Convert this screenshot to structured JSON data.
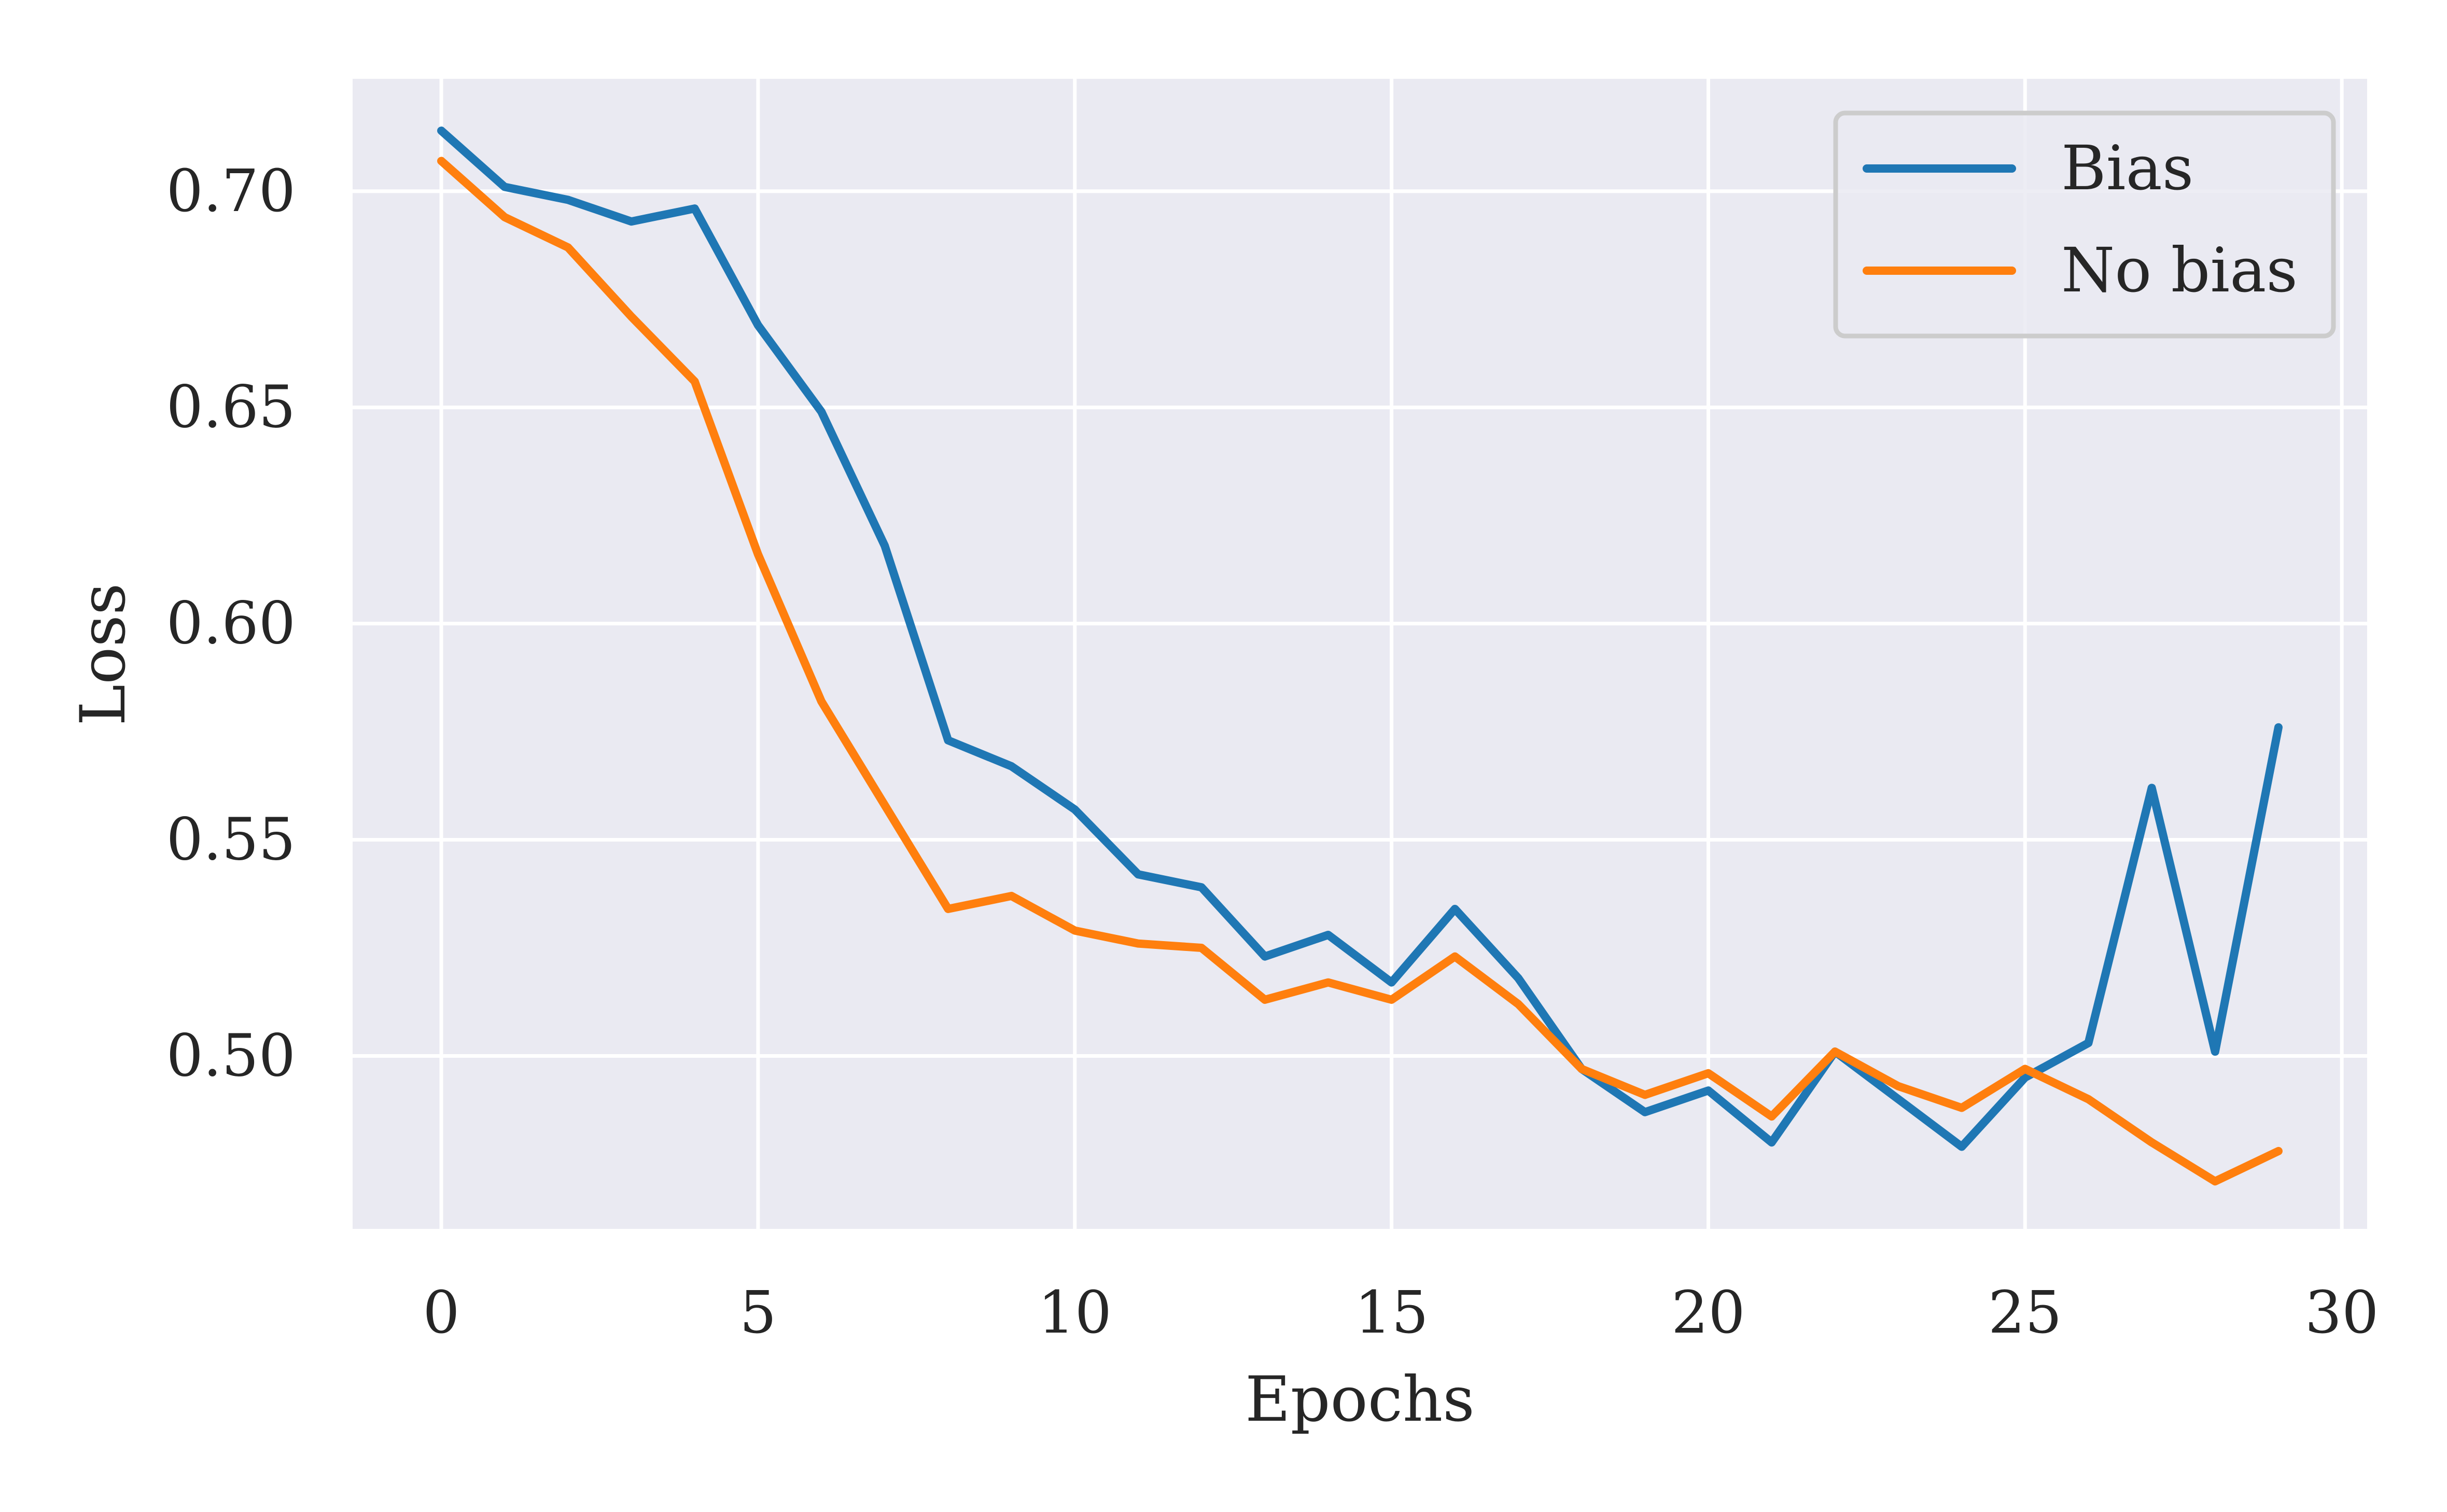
{
  "chart_data": {
    "type": "line",
    "title": "",
    "xlabel": "Epochs",
    "ylabel": "Loss",
    "xlim": [
      -1.4,
      30.4
    ],
    "ylim": [
      0.46,
      0.726
    ],
    "xticks": [
      0,
      5,
      10,
      15,
      20,
      25,
      30
    ],
    "xtick_labels": [
      "0",
      "5",
      "10",
      "15",
      "20",
      "25",
      "30"
    ],
    "yticks": [
      0.5,
      0.55,
      0.6,
      0.65,
      0.7
    ],
    "ytick_labels": [
      "0.50",
      "0.55",
      "0.60",
      "0.65",
      "0.70"
    ],
    "grid": true,
    "legend_position": "top-right",
    "background_color": "#eaeaf2",
    "grid_color": "#ffffff",
    "x": [
      0,
      1,
      2,
      3,
      4,
      5,
      6,
      7,
      8,
      9,
      10,
      11,
      12,
      13,
      14,
      15,
      16,
      17,
      18,
      19,
      20,
      21,
      22,
      23,
      24,
      25,
      26,
      27,
      28,
      29
    ],
    "series": [
      {
        "name": "Bias",
        "color": "#1f77b4",
        "values": [
          0.714,
          0.701,
          0.698,
          0.693,
          0.696,
          0.669,
          0.649,
          0.618,
          0.573,
          0.567,
          0.557,
          0.542,
          0.539,
          0.523,
          0.528,
          0.517,
          0.534,
          0.518,
          0.497,
          0.487,
          0.492,
          0.48,
          0.501,
          0.49,
          0.479,
          0.495,
          0.503,
          0.562,
          0.501,
          0.576
        ]
      },
      {
        "name": "No bias",
        "color": "#ff7f0e",
        "values": [
          0.707,
          0.694,
          0.687,
          0.671,
          0.656,
          0.616,
          0.582,
          0.558,
          0.534,
          0.537,
          0.529,
          0.526,
          0.525,
          0.513,
          0.517,
          0.513,
          0.523,
          0.512,
          0.497,
          0.491,
          0.496,
          0.486,
          0.501,
          0.493,
          0.488,
          0.497,
          0.49,
          0.48,
          0.471,
          0.478
        ]
      }
    ]
  }
}
